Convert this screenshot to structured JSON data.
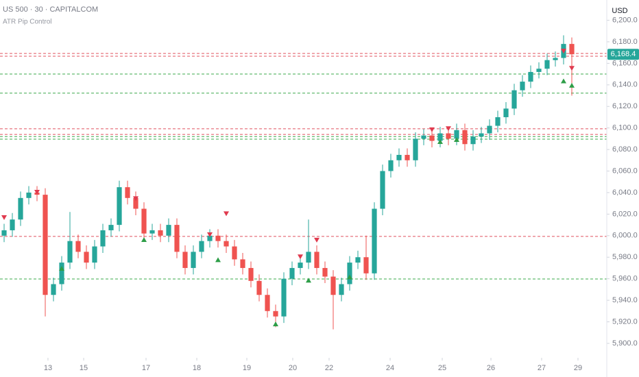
{
  "chart_data": {
    "type": "candlestick",
    "title": "US 500 · 30 · CAPITALCOM",
    "subtitle": "ATR Pip Control",
    "currency": "USD",
    "up_color": "#26a69a",
    "down_color": "#ef5350",
    "x": [
      0,
      1,
      2,
      3,
      4,
      5,
      6,
      7,
      8,
      9,
      10,
      11,
      12,
      13,
      14,
      15,
      16,
      17,
      18,
      19,
      20,
      21,
      22,
      23,
      24,
      25,
      26,
      27,
      28,
      29,
      30,
      31,
      32,
      33,
      34,
      35,
      36,
      37,
      38,
      39,
      40,
      41,
      42,
      43,
      44,
      45,
      46,
      47,
      48,
      49,
      50,
      51,
      52,
      53,
      54,
      55,
      56,
      57,
      58,
      59,
      60,
      61,
      62,
      63,
      64,
      65,
      66,
      67,
      68,
      69
    ],
    "open": [
      6000,
      6005,
      6015,
      6035,
      6040,
      6038,
      5945,
      5955,
      5975,
      5995,
      5985,
      5975,
      5990,
      6005,
      6010,
      6045,
      6035,
      6025,
      6002,
      6005,
      6000,
      6010,
      5985,
      5970,
      5985,
      5995,
      6000,
      5995,
      5990,
      5978,
      5970,
      5958,
      5945,
      5930,
      5925,
      5960,
      5970,
      5975,
      5985,
      5970,
      5962,
      5945,
      5955,
      5975,
      5980,
      5965,
      6025,
      6060,
      6070,
      6075,
      6070,
      6090,
      6093,
      6088,
      6095,
      6090,
      6098,
      6085,
      6092,
      6095,
      6102,
      6110,
      6118,
      6135,
      6143,
      6152,
      6155,
      6163,
      6165,
      6178
    ],
    "high": [
      6011,
      6021,
      6041,
      6046,
      6046,
      6044,
      5961,
      5981,
      6022,
      6001,
      5991,
      5996,
      6011,
      6016,
      6051,
      6051,
      6041,
      6031,
      6011,
      6011,
      6016,
      6016,
      5991,
      5991,
      6001,
      6006,
      6006,
      6001,
      5996,
      5984,
      5976,
      5964,
      5951,
      5936,
      5966,
      5976,
      5981,
      6015,
      5991,
      5976,
      5968,
      5961,
      5981,
      5986,
      6000,
      6031,
      6066,
      6076,
      6081,
      6081,
      6096,
      6099,
      6099,
      6101,
      6101,
      6104,
      6104,
      6098,
      6101,
      6108,
      6116,
      6124,
      6141,
      6149,
      6158,
      6161,
      6169,
      6171,
      6186,
      6184
    ],
    "low": [
      5994,
      5999,
      6009,
      6029,
      6032,
      5925,
      5939,
      5949,
      5969,
      5979,
      5969,
      5969,
      5984,
      5999,
      6004,
      6029,
      6019,
      5996,
      5996,
      5994,
      5994,
      5979,
      5964,
      5964,
      5979,
      5989,
      5989,
      5984,
      5972,
      5964,
      5952,
      5939,
      5924,
      5915,
      5919,
      5954,
      5964,
      5969,
      5964,
      5956,
      5913,
      5939,
      5949,
      5969,
      5959,
      5959,
      6019,
      6054,
      6064,
      6064,
      6064,
      6084,
      6082,
      6082,
      6084,
      6084,
      6079,
      6079,
      6086,
      6089,
      6096,
      6104,
      6112,
      6129,
      6137,
      6146,
      6149,
      6157,
      6159,
      6130
    ],
    "close": [
      6005,
      6015,
      6035,
      6040,
      6038,
      5945,
      5955,
      5975,
      5995,
      5985,
      5975,
      5990,
      6005,
      6010,
      6045,
      6035,
      6025,
      6002,
      6005,
      6000,
      6010,
      5985,
      5970,
      5985,
      5995,
      6000,
      5995,
      5990,
      5978,
      5970,
      5958,
      5945,
      5930,
      5925,
      5960,
      5970,
      5975,
      5985,
      5970,
      5962,
      5945,
      5955,
      5975,
      5980,
      5965,
      6025,
      6060,
      6070,
      6075,
      6070,
      6090,
      6093,
      6088,
      6095,
      6090,
      6098,
      6085,
      6092,
      6095,
      6102,
      6110,
      6118,
      6135,
      6143,
      6152,
      6155,
      6163,
      6165,
      6178,
      6168.4
    ],
    "sell_signals": {
      "color": "#e03a4e",
      "x": [
        0,
        4,
        16,
        25,
        27,
        36,
        38,
        52,
        54,
        68,
        69
      ],
      "y": [
        6016.4,
        6040,
        6034,
        6000.5,
        6020,
        5980,
        5995.5,
        6098,
        6099,
        6171,
        6155
      ]
    },
    "buy_signals": {
      "color": "#2e9e48",
      "x": [
        7,
        17,
        26,
        33,
        37,
        42,
        53,
        55,
        68,
        69
      ],
      "y": [
        5970,
        5996.7,
        5978,
        5918.4,
        5959,
        5962,
        6087.7,
        6089.6,
        6144,
        6140
      ]
    },
    "levels": [
      {
        "value": 6169.2,
        "color": "#e0505e"
      },
      {
        "value": 6166.6,
        "color": "#e0505e"
      },
      {
        "value": 6150.1,
        "color": "#3aa84a"
      },
      {
        "value": 6132.3,
        "color": "#3aa84a"
      },
      {
        "value": 6099.2,
        "color": "#e0505e"
      },
      {
        "value": 6094,
        "color": "#e0505e"
      },
      {
        "value": 6092,
        "color": "#3aa84a"
      },
      {
        "value": 6089.6,
        "color": "#3aa84a"
      },
      {
        "value": 5999.3,
        "color": "#e0505e"
      },
      {
        "value": 5959.8,
        "color": "#3aa84a"
      }
    ],
    "last_price": {
      "value": 6168.4,
      "label": "6,168.4",
      "color": "#26a69a"
    },
    "xlim": [
      -0.5,
      73.25
    ],
    "ylim": [
      5886.6,
      6218.8
    ],
    "xticks": [
      {
        "value": 5.33,
        "label": "13"
      },
      {
        "value": 9.67,
        "label": "15"
      },
      {
        "value": 17.25,
        "label": "17"
      },
      {
        "value": 23.42,
        "label": "18"
      },
      {
        "value": 29.5,
        "label": "19"
      },
      {
        "value": 35.08,
        "label": "20"
      },
      {
        "value": 39.5,
        "label": "22"
      },
      {
        "value": 46.92,
        "label": "24"
      },
      {
        "value": 53.25,
        "label": "25"
      },
      {
        "value": 59.17,
        "label": "26"
      },
      {
        "value": 65.33,
        "label": "27"
      },
      {
        "value": 69.75,
        "label": "29"
      }
    ],
    "yticks": [
      {
        "value": 5900,
        "label": "5,900.0"
      },
      {
        "value": 5920,
        "label": "5,920.0"
      },
      {
        "value": 5940,
        "label": "5,940.0"
      },
      {
        "value": 5960,
        "label": "5,960.0"
      },
      {
        "value": 5980,
        "label": "5,980.0"
      },
      {
        "value": 6000,
        "label": "6,000.0"
      },
      {
        "value": 6020,
        "label": "6,020.0"
      },
      {
        "value": 6040,
        "label": "6,040.0"
      },
      {
        "value": 6060,
        "label": "6,060.0"
      },
      {
        "value": 6080,
        "label": "6,080.0"
      },
      {
        "value": 6100,
        "label": "6,100.0"
      },
      {
        "value": 6120,
        "label": "6,120.0"
      },
      {
        "value": 6140,
        "label": "6,140.0"
      },
      {
        "value": 6160,
        "label": "6,160.0"
      },
      {
        "value": 6180,
        "label": "6,180.0"
      },
      {
        "value": 6200,
        "label": "6,200.0"
      }
    ]
  }
}
